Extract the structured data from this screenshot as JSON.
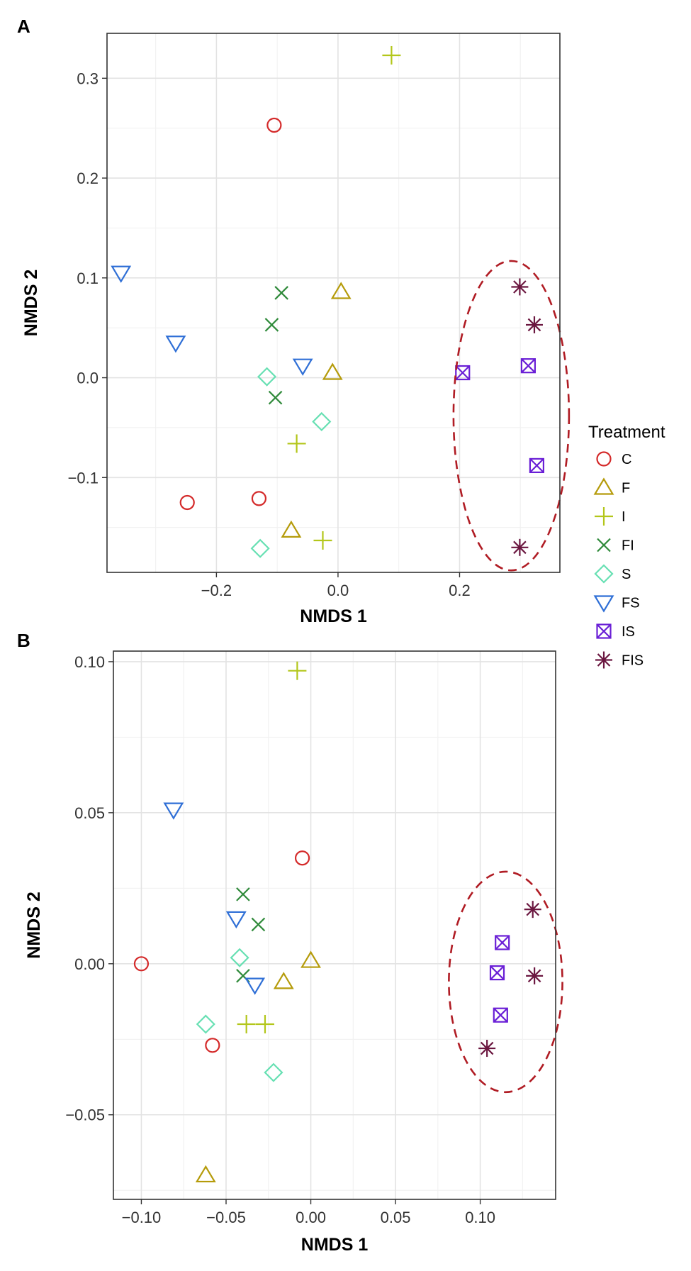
{
  "chart_data": [
    {
      "type": "scatter",
      "panel_label": "A",
      "xlabel": "NMDS 1",
      "ylabel": "NMDS 2",
      "xlim": [
        -0.38,
        0.365
      ],
      "ylim": [
        -0.195,
        0.345
      ],
      "xticks": [
        {
          "value": -0.2,
          "label": "−0.2"
        },
        {
          "value": 0.0,
          "label": "0.0"
        },
        {
          "value": 0.2,
          "label": "0.2"
        }
      ],
      "yticks": [
        {
          "value": -0.1,
          "label": "−0.1"
        },
        {
          "value": 0.0,
          "label": "0.0"
        },
        {
          "value": 0.1,
          "label": "0.1"
        },
        {
          "value": 0.2,
          "label": "0.2"
        },
        {
          "value": 0.3,
          "label": "0.3"
        }
      ],
      "grid": true,
      "points": [
        {
          "treatment": "C",
          "x": -0.105,
          "y": 0.253
        },
        {
          "treatment": "C",
          "x": -0.248,
          "y": -0.125
        },
        {
          "treatment": "C",
          "x": -0.13,
          "y": -0.121
        },
        {
          "treatment": "F",
          "x": 0.005,
          "y": 0.086
        },
        {
          "treatment": "F",
          "x": -0.009,
          "y": 0.005
        },
        {
          "treatment": "F",
          "x": -0.077,
          "y": -0.153
        },
        {
          "treatment": "I",
          "x": 0.088,
          "y": 0.323
        },
        {
          "treatment": "I",
          "x": -0.068,
          "y": -0.066
        },
        {
          "treatment": "I",
          "x": -0.025,
          "y": -0.163
        },
        {
          "treatment": "FI",
          "x": -0.093,
          "y": 0.085
        },
        {
          "treatment": "FI",
          "x": -0.109,
          "y": 0.053
        },
        {
          "treatment": "FI",
          "x": -0.103,
          "y": -0.02
        },
        {
          "treatment": "S",
          "x": -0.117,
          "y": 0.001
        },
        {
          "treatment": "S",
          "x": -0.027,
          "y": -0.044
        },
        {
          "treatment": "S",
          "x": -0.128,
          "y": -0.171
        },
        {
          "treatment": "FS",
          "x": -0.357,
          "y": 0.105
        },
        {
          "treatment": "FS",
          "x": -0.267,
          "y": 0.035
        },
        {
          "treatment": "FS",
          "x": -0.058,
          "y": 0.012
        },
        {
          "treatment": "IS",
          "x": 0.205,
          "y": 0.005
        },
        {
          "treatment": "IS",
          "x": 0.313,
          "y": 0.012
        },
        {
          "treatment": "IS",
          "x": 0.327,
          "y": -0.088
        },
        {
          "treatment": "FIS",
          "x": 0.299,
          "y": 0.091
        },
        {
          "treatment": "FIS",
          "x": 0.323,
          "y": 0.053
        },
        {
          "treatment": "FIS",
          "x": 0.299,
          "y": -0.17
        }
      ],
      "ellipse": {
        "cx": 0.285,
        "cy": -0.038,
        "rx": 0.095,
        "ry": 0.155
      }
    },
    {
      "type": "scatter",
      "panel_label": "B",
      "xlabel": "NMDS 1",
      "ylabel": "NMDS 2",
      "xlim": [
        -0.1165,
        0.1445
      ],
      "ylim": [
        -0.078,
        0.1035
      ],
      "xticks": [
        {
          "value": -0.1,
          "label": "−0.10"
        },
        {
          "value": -0.05,
          "label": "−0.05"
        },
        {
          "value": 0.0,
          "label": "0.00"
        },
        {
          "value": 0.05,
          "label": "0.05"
        },
        {
          "value": 0.1,
          "label": "0.10"
        }
      ],
      "yticks": [
        {
          "value": -0.05,
          "label": "−0.05"
        },
        {
          "value": 0.0,
          "label": "0.00"
        },
        {
          "value": 0.05,
          "label": "0.05"
        },
        {
          "value": 0.1,
          "label": "0.10"
        }
      ],
      "grid": true,
      "points": [
        {
          "treatment": "C",
          "x": -0.005,
          "y": 0.035
        },
        {
          "treatment": "C",
          "x": -0.1,
          "y": 0.0
        },
        {
          "treatment": "C",
          "x": -0.058,
          "y": -0.027
        },
        {
          "treatment": "F",
          "x": 0.0,
          "y": 0.001
        },
        {
          "treatment": "F",
          "x": -0.016,
          "y": -0.006
        },
        {
          "treatment": "F",
          "x": -0.062,
          "y": -0.07
        },
        {
          "treatment": "I",
          "x": -0.008,
          "y": 0.097
        },
        {
          "treatment": "I",
          "x": -0.038,
          "y": -0.02
        },
        {
          "treatment": "I",
          "x": -0.027,
          "y": -0.02
        },
        {
          "treatment": "FI",
          "x": -0.04,
          "y": 0.023
        },
        {
          "treatment": "FI",
          "x": -0.031,
          "y": 0.013
        },
        {
          "treatment": "FI",
          "x": -0.04,
          "y": -0.004
        },
        {
          "treatment": "S",
          "x": -0.042,
          "y": 0.002
        },
        {
          "treatment": "S",
          "x": -0.062,
          "y": -0.02
        },
        {
          "treatment": "S",
          "x": -0.022,
          "y": -0.036
        },
        {
          "treatment": "FS",
          "x": -0.081,
          "y": 0.051
        },
        {
          "treatment": "FS",
          "x": -0.044,
          "y": 0.015
        },
        {
          "treatment": "FS",
          "x": -0.033,
          "y": -0.007
        },
        {
          "treatment": "IS",
          "x": 0.113,
          "y": 0.007
        },
        {
          "treatment": "IS",
          "x": 0.11,
          "y": -0.003
        },
        {
          "treatment": "IS",
          "x": 0.112,
          "y": -0.017
        },
        {
          "treatment": "FIS",
          "x": 0.131,
          "y": 0.018
        },
        {
          "treatment": "FIS",
          "x": 0.132,
          "y": -0.004
        },
        {
          "treatment": "FIS",
          "x": 0.104,
          "y": -0.028
        }
      ],
      "ellipse": {
        "cx": 0.115,
        "cy": -0.006,
        "rx": 0.0335,
        "ry": 0.0365
      }
    }
  ],
  "legend": {
    "title": "Treatment",
    "placement": "right",
    "items": [
      {
        "key": "C",
        "label": "C",
        "shape": "circle",
        "color": "#d42a2a"
      },
      {
        "key": "F",
        "label": "F",
        "shape": "triangle-up",
        "color": "#b59b0a"
      },
      {
        "key": "I",
        "label": "I",
        "shape": "plus",
        "color": "#b3c61a"
      },
      {
        "key": "FI",
        "label": "FI",
        "shape": "cross",
        "color": "#2f8a3a"
      },
      {
        "key": "S",
        "label": "S",
        "shape": "diamond",
        "color": "#67e0b3"
      },
      {
        "key": "FS",
        "label": "FS",
        "shape": "triangle-down",
        "color": "#2f6fd6"
      },
      {
        "key": "IS",
        "label": "IS",
        "shape": "square-cross",
        "color": "#6a1fd6"
      },
      {
        "key": "FIS",
        "label": "FIS",
        "shape": "asterisk",
        "color": "#6b1740"
      }
    ]
  },
  "ellipse_color": "#b01c24"
}
